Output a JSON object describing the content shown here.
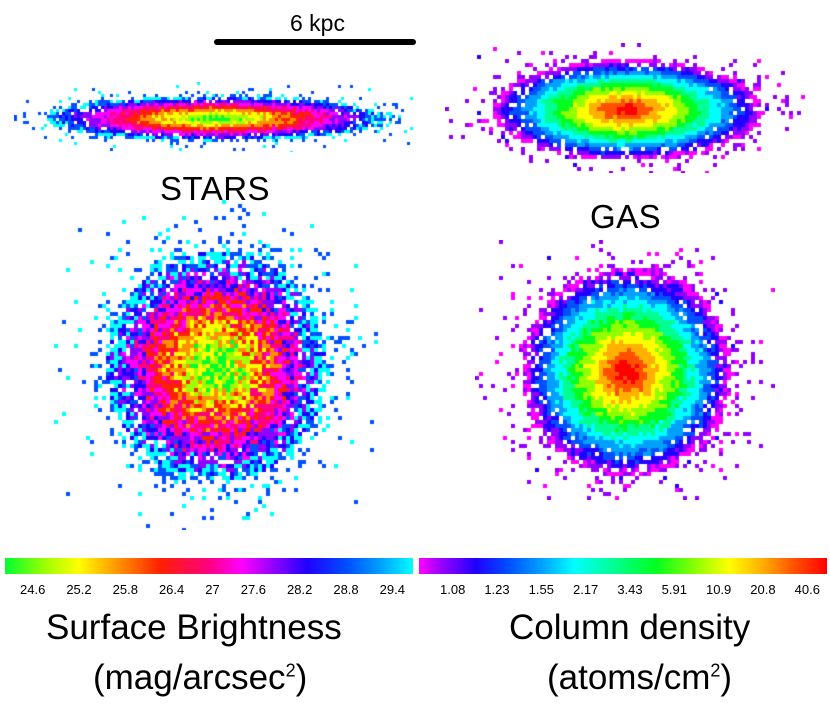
{
  "scale": {
    "label": "6 kpc"
  },
  "panels": {
    "stars_label": "STARS",
    "gas_label": "GAS"
  },
  "colorbars": {
    "stars": {
      "ticks": [
        "24.6",
        "25.2",
        "25.8",
        "26.4",
        "27",
        "27.6",
        "28.2",
        "28.8",
        "29.4"
      ],
      "title": "Surface Brightness",
      "units_base": "(mag/arcsec",
      "units_sup": "2",
      "units_close": ")"
    },
    "gas": {
      "ticks": [
        "1.08",
        "1.23",
        "1.55",
        "2.17",
        "3.43",
        "5.91",
        "10.9",
        "20.8",
        "40.6"
      ],
      "title": "Column density",
      "units_base": "(atoms/cm",
      "units_sup": "2",
      "units_close": ")"
    }
  },
  "colors": {
    "stars_ramp": [
      "#00ffff",
      "#0050ff",
      "#2000ff",
      "#9000ff",
      "#ff00ff",
      "#ff0080",
      "#ff2000",
      "#ff9000",
      "#ffff00",
      "#a0ff00",
      "#00ff30"
    ],
    "gas_ramp": [
      "#ff00ff",
      "#9000ff",
      "#2000ff",
      "#0050ff",
      "#00a0ff",
      "#00ffff",
      "#00ff90",
      "#00ff20",
      "#90ff00",
      "#ffff00",
      "#ffb000",
      "#ff5000",
      "#ff0000"
    ]
  }
}
